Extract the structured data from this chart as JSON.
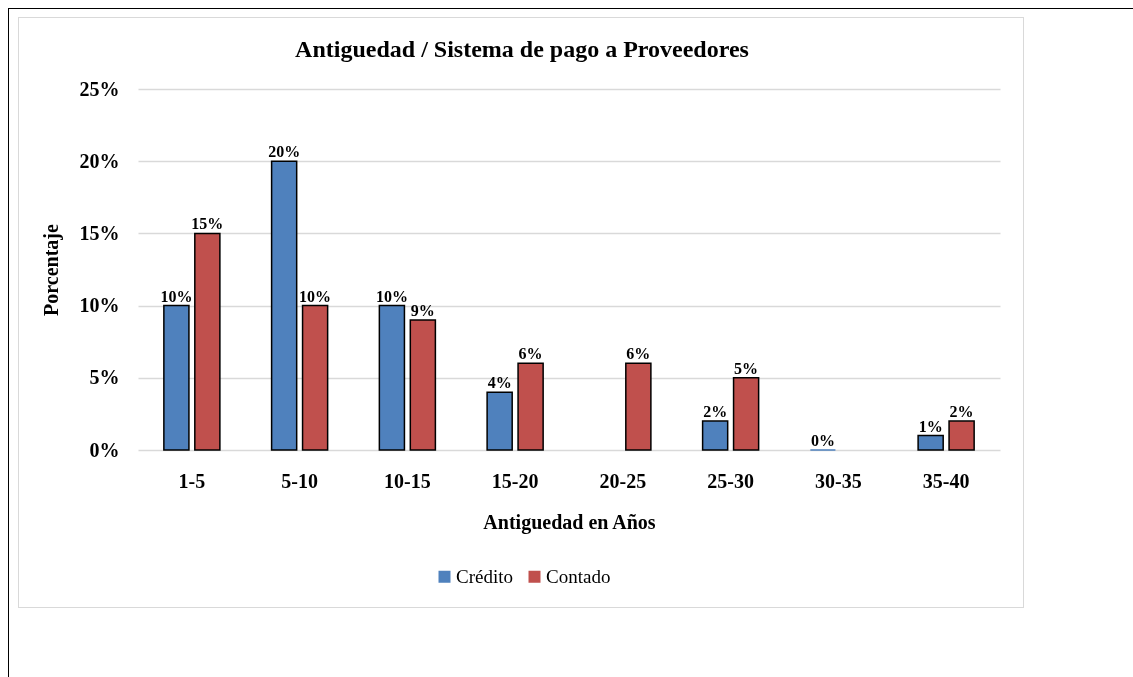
{
  "chart_data": {
    "type": "bar",
    "title": "Antiguedad / Sistema de pago a Proveedores",
    "xlabel": "Antiguedad en Años",
    "ylabel": "Porcentaje",
    "categories": [
      "1-5",
      "5-10",
      "10-15",
      "15-20",
      "20-25",
      "25-30",
      "30-35",
      "35-40"
    ],
    "series": [
      {
        "name": "Crédito",
        "color": "#4f81bd",
        "values": [
          10,
          20,
          10,
          4,
          null,
          2,
          0,
          1
        ],
        "value_labels": [
          "10%",
          "20%",
          "10%",
          "4%",
          null,
          "2%",
          "0%",
          "1%"
        ]
      },
      {
        "name": "Contado",
        "color": "#c0504d",
        "values": [
          15,
          10,
          9,
          6,
          6,
          5,
          null,
          2
        ],
        "value_labels": [
          "15%",
          "10%",
          "9%",
          "6%",
          "6%",
          "5%",
          null,
          "2%"
        ]
      }
    ],
    "ylim": [
      0,
      25
    ],
    "yticks": [
      {
        "value": 0,
        "label": "0%"
      },
      {
        "value": 5,
        "label": "5%"
      },
      {
        "value": 10,
        "label": "10%"
      },
      {
        "value": 15,
        "label": "15%"
      },
      {
        "value": 20,
        "label": "20%"
      },
      {
        "value": 25,
        "label": "25%"
      }
    ],
    "grid": "y",
    "legend": "bottom"
  }
}
